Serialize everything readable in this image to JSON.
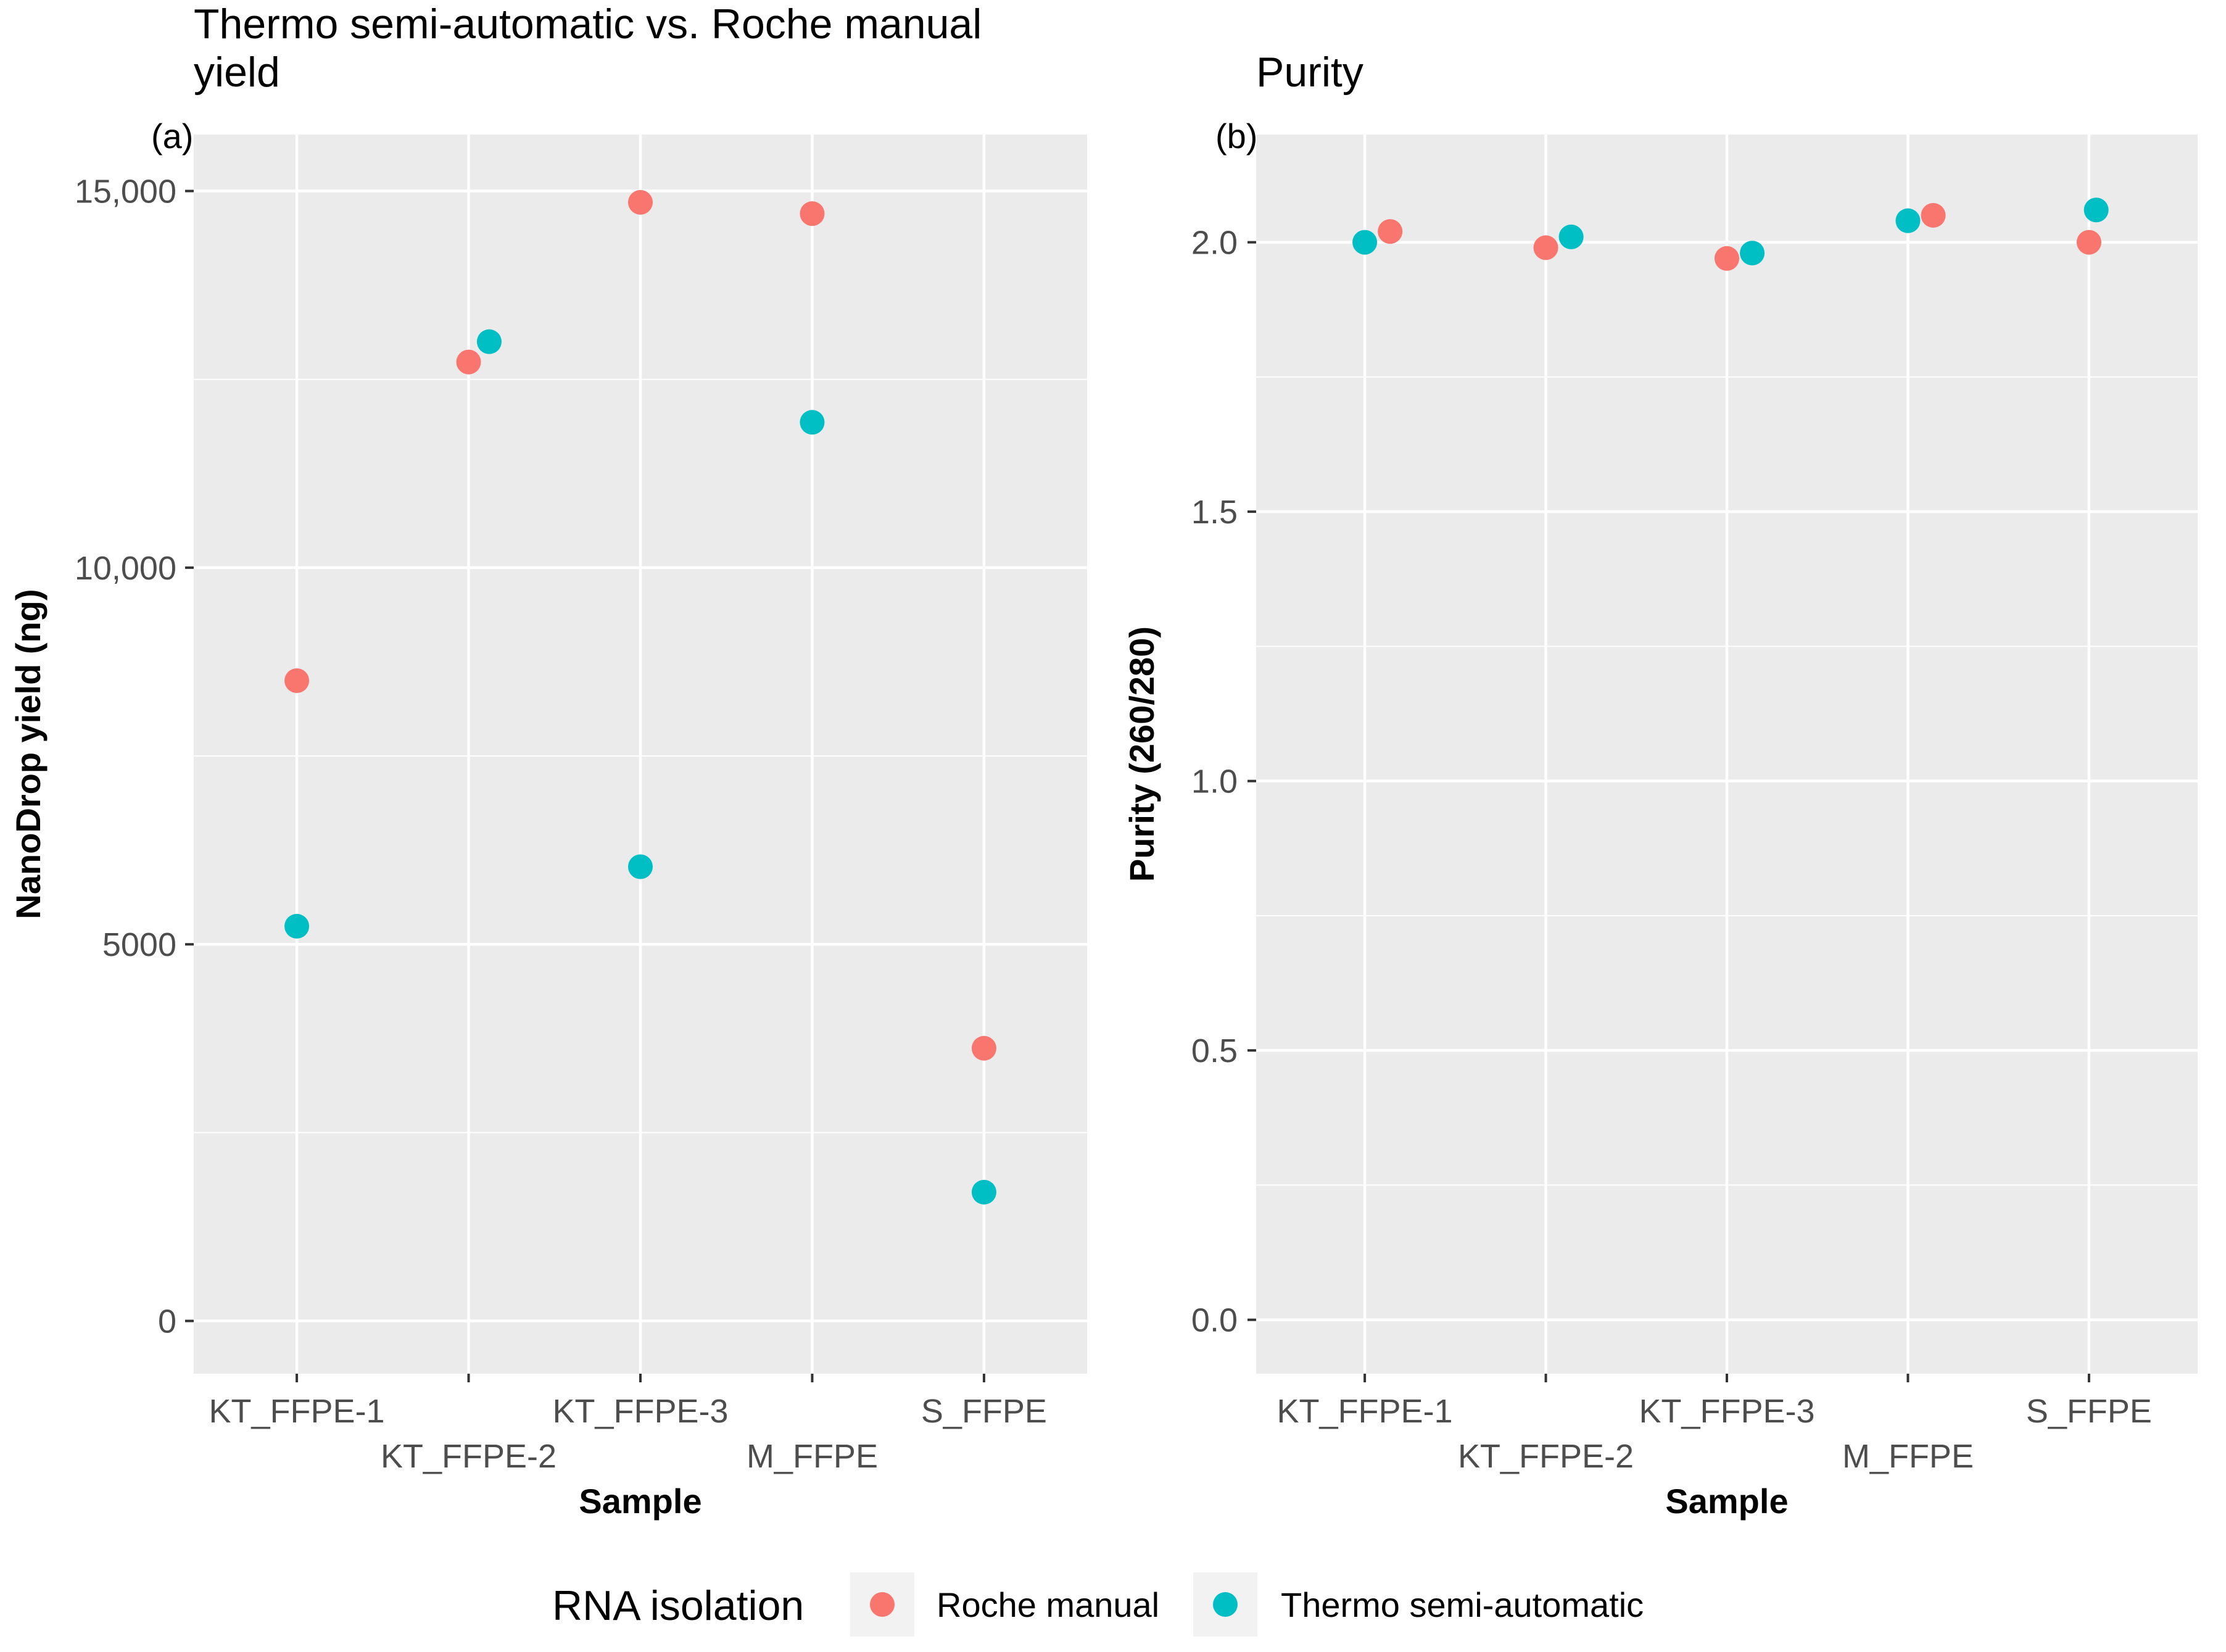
{
  "legend": {
    "title": "RNA isolation",
    "items": [
      {
        "label": "Roche manual",
        "color": "#F8766D"
      },
      {
        "label": "Thermo semi-automatic",
        "color": "#00BFC4"
      }
    ]
  },
  "chart_data": [
    {
      "type": "scatter",
      "title": "Thermo semi-automatic vs. Roche manual\nyield",
      "tag": "(a)",
      "xlabel": "Sample",
      "ylabel": "NanoDrop yield (ng)",
      "categories": [
        "KT_FFPE-1",
        "KT_FFPE-2",
        "KT_FFPE-3",
        "M_FFPE",
        "S_FFPE"
      ],
      "ylim": [
        -700,
        15750
      ],
      "yticks": [
        0,
        5000,
        10000,
        15000
      ],
      "ytick_labels": [
        "0",
        "5000",
        "10,000",
        "15,000"
      ],
      "grid": true,
      "series": [
        {
          "name": "Roche manual",
          "color": "#F8766D",
          "points": [
            {
              "x": "KT_FFPE-1",
              "y": 8500,
              "jitter": 0.0
            },
            {
              "x": "KT_FFPE-2",
              "y": 12730,
              "jitter": 0.0
            },
            {
              "x": "KT_FFPE-3",
              "y": 14850,
              "jitter": 0.0
            },
            {
              "x": "M_FFPE",
              "y": 14700,
              "jitter": 0.0
            },
            {
              "x": "S_FFPE",
              "y": 3620,
              "jitter": 0.0
            }
          ]
        },
        {
          "name": "Thermo semi-automatic",
          "color": "#00BFC4",
          "points": [
            {
              "x": "KT_FFPE-1",
              "y": 5240,
              "jitter": 0.0
            },
            {
              "x": "KT_FFPE-2",
              "y": 13000,
              "jitter": 0.12
            },
            {
              "x": "KT_FFPE-3",
              "y": 6030,
              "jitter": 0.0
            },
            {
              "x": "M_FFPE",
              "y": 11930,
              "jitter": 0.0
            },
            {
              "x": "S_FFPE",
              "y": 1710,
              "jitter": 0.0
            }
          ]
        }
      ]
    },
    {
      "type": "scatter",
      "title": "Purity",
      "tag": "(b)",
      "xlabel": "Sample",
      "ylabel": "Purity (260/280)",
      "categories": [
        "KT_FFPE-1",
        "KT_FFPE-2",
        "KT_FFPE-3",
        "M_FFPE",
        "S_FFPE"
      ],
      "ylim": [
        -0.1,
        2.2
      ],
      "yticks": [
        0.0,
        0.5,
        1.0,
        1.5,
        2.0
      ],
      "ytick_labels": [
        "0.0",
        "0.5",
        "1.0",
        "1.5",
        "2.0"
      ],
      "grid": true,
      "series": [
        {
          "name": "Roche manual",
          "color": "#F8766D",
          "points": [
            {
              "x": "KT_FFPE-1",
              "y": 2.02,
              "jitter": 0.14
            },
            {
              "x": "KT_FFPE-2",
              "y": 1.99,
              "jitter": 0.0
            },
            {
              "x": "KT_FFPE-3",
              "y": 1.97,
              "jitter": 0.0
            },
            {
              "x": "M_FFPE",
              "y": 2.05,
              "jitter": 0.14
            },
            {
              "x": "S_FFPE",
              "y": 2.0,
              "jitter": 0.0
            }
          ]
        },
        {
          "name": "Thermo semi-automatic",
          "color": "#00BFC4",
          "points": [
            {
              "x": "KT_FFPE-1",
              "y": 2.0,
              "jitter": 0.0
            },
            {
              "x": "KT_FFPE-2",
              "y": 2.01,
              "jitter": 0.14
            },
            {
              "x": "KT_FFPE-3",
              "y": 1.98,
              "jitter": 0.14
            },
            {
              "x": "M_FFPE",
              "y": 2.04,
              "jitter": 0.0
            },
            {
              "x": "S_FFPE",
              "y": 2.06,
              "jitter": 0.04
            }
          ]
        }
      ]
    }
  ]
}
